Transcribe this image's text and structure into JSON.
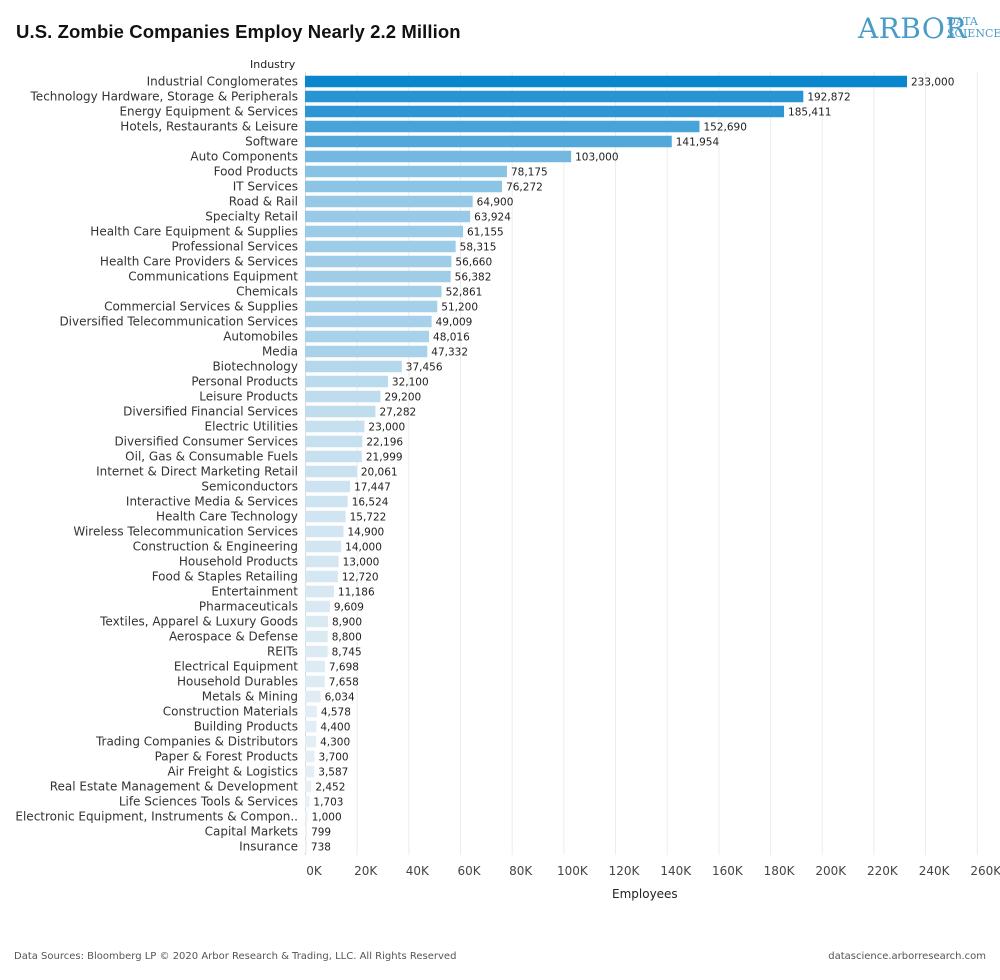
{
  "title": "U.S. Zombie Companies Employ Nearly 2.2 Million",
  "logo": {
    "main": "ARBOR",
    "line1": "DATA",
    "line2": "SCIENCE"
  },
  "footer": {
    "left": "Data Sources: Bloomberg LP © 2020 Arbor Research & Trading, LLC. All Rights Reserved",
    "right": "datascience.arborresearch.com"
  },
  "chart_data": {
    "type": "bar",
    "orientation": "horizontal",
    "title": "U.S. Zombie Companies Employ Nearly 2.2 Million",
    "ylabel": "Industry",
    "xlabel": "Employees",
    "xlim": [
      0,
      265000
    ],
    "xticks": [
      "0K",
      "20K",
      "40K",
      "60K",
      "80K",
      "100K",
      "120K",
      "140K",
      "160K",
      "180K",
      "200K",
      "220K",
      "240K",
      "260K"
    ],
    "grid": true,
    "color_scale": [
      "#eef3f7",
      "#0a86cc"
    ],
    "categories": [
      "Industrial Conglomerates",
      "Technology Hardware, Storage & Peripherals",
      "Energy Equipment & Services",
      "Hotels, Restaurants & Leisure",
      "Software",
      "Auto Components",
      "Food Products",
      "IT Services",
      "Road & Rail",
      "Specialty Retail",
      "Health Care Equipment & Supplies",
      "Professional Services",
      "Health Care Providers & Services",
      "Communications Equipment",
      "Chemicals",
      "Commercial Services & Supplies",
      "Diversified Telecommunication Services",
      "Automobiles",
      "Media",
      "Biotechnology",
      "Personal Products",
      "Leisure Products",
      "Diversified Financial Services",
      "Electric Utilities",
      "Diversified Consumer Services",
      "Oil, Gas & Consumable Fuels",
      "Internet & Direct Marketing Retail",
      "Semiconductors",
      "Interactive Media & Services",
      "Health Care Technology",
      "Wireless Telecommunication Services",
      "Construction & Engineering",
      "Household Products",
      "Food & Staples Retailing",
      "Entertainment",
      "Pharmaceuticals",
      "Textiles, Apparel & Luxury Goods",
      "Aerospace & Defense",
      "REITs",
      "Electrical Equipment",
      "Household Durables",
      "Metals & Mining",
      "Construction Materials",
      "Building Products",
      "Trading Companies & Distributors",
      "Paper & Forest Products",
      "Air Freight & Logistics",
      "Real Estate Management & Development",
      "Life Sciences Tools & Services",
      "Electronic Equipment, Instruments & Compon..",
      "Capital Markets",
      "Insurance"
    ],
    "values": [
      233000,
      192872,
      185411,
      152690,
      141954,
      103000,
      78175,
      76272,
      64900,
      63924,
      61155,
      58315,
      56660,
      56382,
      52861,
      51200,
      49009,
      48016,
      47332,
      37456,
      32100,
      29200,
      27282,
      23000,
      22196,
      21999,
      20061,
      17447,
      16524,
      15722,
      14900,
      14000,
      13000,
      12720,
      11186,
      9609,
      8900,
      8800,
      8745,
      7698,
      7658,
      6034,
      4578,
      4400,
      4300,
      3700,
      3587,
      2452,
      1703,
      1000,
      799,
      738
    ],
    "value_labels": [
      "233,000",
      "192,872",
      "185,411",
      "152,690",
      "141,954",
      "103,000",
      "78,175",
      "76,272",
      "64,900",
      "63,924",
      "61,155",
      "58,315",
      "56,660",
      "56,382",
      "52,861",
      "51,200",
      "49,009",
      "48,016",
      "47,332",
      "37,456",
      "32,100",
      "29,200",
      "27,282",
      "23,000",
      "22,196",
      "21,999",
      "20,061",
      "17,447",
      "16,524",
      "15,722",
      "14,900",
      "14,000",
      "13,000",
      "12,720",
      "11,186",
      "9,609",
      "8,900",
      "8,800",
      "8,745",
      "7,698",
      "7,658",
      "6,034",
      "4,578",
      "4,400",
      "4,300",
      "3,700",
      "3,587",
      "2,452",
      "1,703",
      "1,000",
      "799",
      "738"
    ]
  }
}
